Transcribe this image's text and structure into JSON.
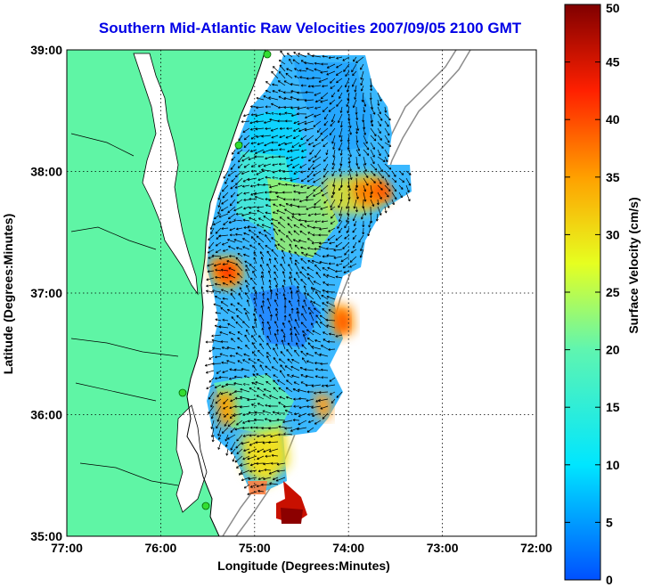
{
  "title": "Southern Mid-Atlantic Raw Velocities 2007/09/05 2100 GMT",
  "map": {
    "xlabel": "Longitude (Degrees:Minutes)",
    "ylabel": "Latitude (Degrees:Minutes)",
    "lon_ticks": [
      "77:00",
      "76:00",
      "75:00",
      "74:00",
      "73:00",
      "72:00"
    ],
    "lat_ticks": [
      "39:00",
      "38:00",
      "37:00",
      "36:00",
      "35:00"
    ],
    "lon_range": [
      -77,
      -72
    ],
    "lat_range": [
      35,
      39
    ],
    "land_color": "#5ff5a5",
    "grid": true
  },
  "colorbar": {
    "label": "Surface Velocity (cm/s)",
    "unit": "cm/s",
    "range": [
      0,
      50
    ],
    "ticks": [
      "0",
      "5",
      "10",
      "15",
      "20",
      "25",
      "30",
      "35",
      "40",
      "45",
      "50"
    ]
  }
}
